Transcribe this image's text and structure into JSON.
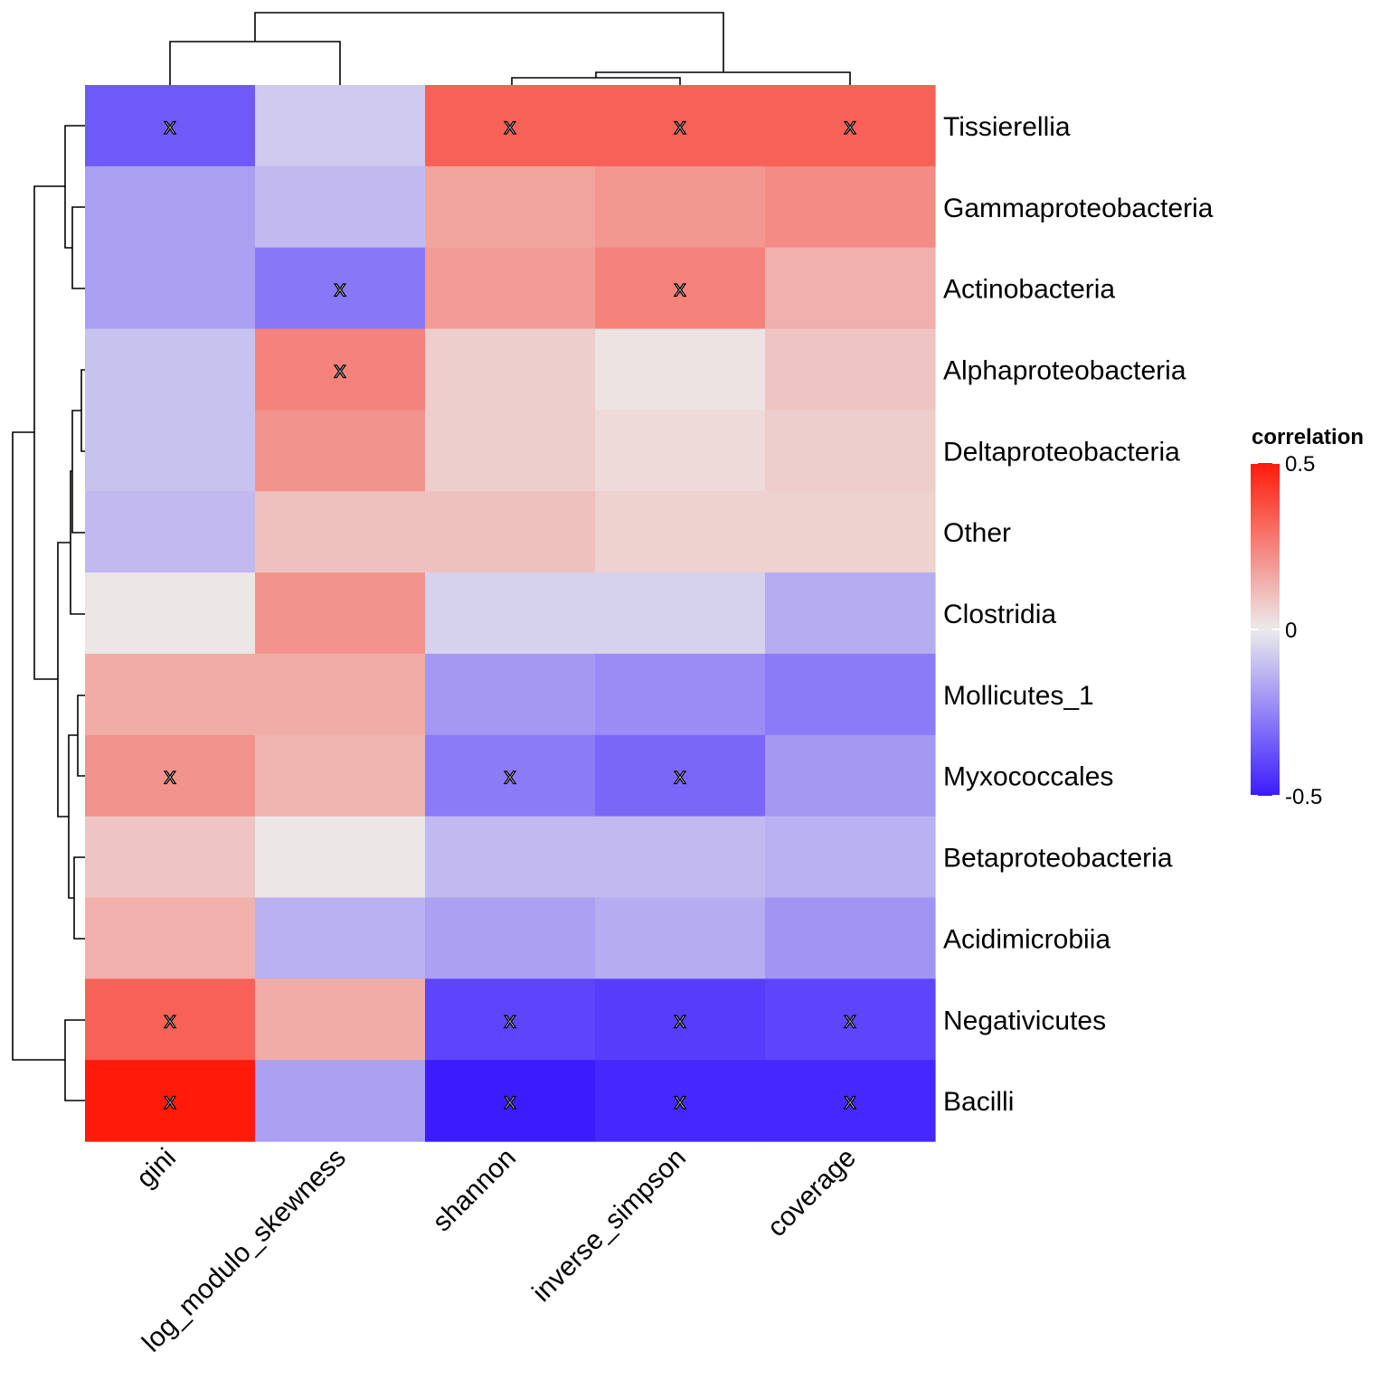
{
  "chart_data": {
    "type": "heatmap",
    "title": "",
    "xlabel": "",
    "ylabel": "",
    "columns": [
      "gini",
      "log_modulo_skewness",
      "shannon",
      "inverse_simpson",
      "coverage"
    ],
    "rows": [
      "Tissierellia",
      "Gammaproteobacteria",
      "Actinobacteria",
      "Alphaproteobacteria",
      "Deltaproteobacteria",
      "Other",
      "Clostridia",
      "Mollicutes_1",
      "Myxococcales",
      "Betaproteobacteria",
      "Acidimicrobiia",
      "Negativicutes",
      "Bacilli"
    ],
    "values": [
      [
        -0.35,
        -0.08,
        0.33,
        0.33,
        0.33
      ],
      [
        -0.18,
        -0.12,
        0.17,
        0.2,
        0.23
      ],
      [
        -0.18,
        -0.28,
        0.19,
        0.25,
        0.14
      ],
      [
        -0.1,
        0.25,
        0.07,
        0.02,
        0.09
      ],
      [
        -0.1,
        0.21,
        0.07,
        0.04,
        0.07
      ],
      [
        -0.12,
        0.1,
        0.1,
        0.06,
        0.06
      ],
      [
        0.01,
        0.21,
        -0.06,
        -0.06,
        -0.15
      ],
      [
        0.15,
        0.15,
        -0.2,
        -0.23,
        -0.27
      ],
      [
        0.21,
        0.13,
        -0.27,
        -0.32,
        -0.2
      ],
      [
        0.09,
        0.01,
        -0.12,
        -0.12,
        -0.14
      ],
      [
        0.14,
        -0.14,
        -0.18,
        -0.15,
        -0.21
      ],
      [
        0.33,
        0.15,
        -0.4,
        -0.42,
        -0.4
      ],
      [
        0.5,
        -0.18,
        -0.5,
        -0.47,
        -0.47
      ]
    ],
    "significant": [
      [
        true,
        false,
        true,
        true,
        true
      ],
      [
        false,
        false,
        false,
        false,
        false
      ],
      [
        false,
        true,
        false,
        true,
        false
      ],
      [
        false,
        true,
        false,
        false,
        false
      ],
      [
        false,
        false,
        false,
        false,
        false
      ],
      [
        false,
        false,
        false,
        false,
        false
      ],
      [
        false,
        false,
        false,
        false,
        false
      ],
      [
        false,
        false,
        false,
        false,
        false
      ],
      [
        true,
        false,
        true,
        true,
        false
      ],
      [
        false,
        false,
        false,
        false,
        false
      ],
      [
        false,
        false,
        false,
        false,
        false
      ],
      [
        true,
        false,
        true,
        true,
        true
      ],
      [
        true,
        false,
        true,
        true,
        true
      ]
    ],
    "significance_marker": "x",
    "legend": {
      "title": "correlation",
      "position": "right",
      "range": [
        -0.5,
        0.5
      ],
      "ticks": [
        0.5,
        0,
        -0.5
      ],
      "tick_labels": [
        "0.5",
        "0",
        "-0.5"
      ],
      "color_low": "#3a1cff",
      "color_mid": "#ebebeb",
      "color_high": "#ff1a0a"
    },
    "column_dendrogram": true,
    "row_dendrogram": true
  }
}
